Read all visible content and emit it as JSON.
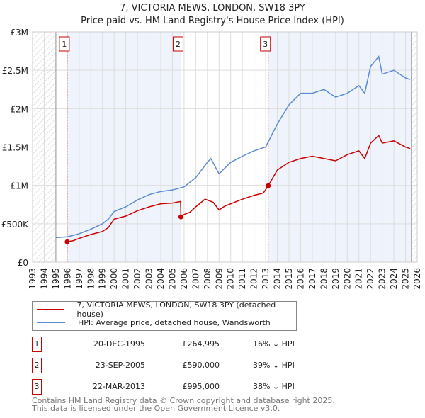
{
  "chart_data": {
    "type": "line",
    "title": "7, VICTORIA MEWS, LONDON, SW18 3PY",
    "subtitle": "Price paid vs. HM Land Registry's House Price Index (HPI)",
    "xlim": [
      1993,
      2026
    ],
    "ylim": [
      0,
      3000000
    ],
    "yticks": [
      {
        "v": 0,
        "label": "£0"
      },
      {
        "v": 500000,
        "label": "£500K"
      },
      {
        "v": 1000000,
        "label": "£1M"
      },
      {
        "v": 1500000,
        "label": "£1.5M"
      },
      {
        "v": 2000000,
        "label": "£2M"
      },
      {
        "v": 2500000,
        "label": "£2.5M"
      },
      {
        "v": 3000000,
        "label": "£3M"
      }
    ],
    "xticks": [
      "1993",
      "1994",
      "1995",
      "1996",
      "1997",
      "1998",
      "1999",
      "2000",
      "2001",
      "2002",
      "2003",
      "2004",
      "2005",
      "2006",
      "2007",
      "2008",
      "2009",
      "2010",
      "2011",
      "2012",
      "2013",
      "2014",
      "2015",
      "2016",
      "2017",
      "2018",
      "2019",
      "2020",
      "2021",
      "2022",
      "2023",
      "2024",
      "2025",
      "2026"
    ],
    "series": [
      {
        "name": "7, VICTORIA MEWS, LONDON, SW18 3PY (detached house)",
        "color": "#cc0000",
        "x": [
          1995.97,
          1996.5,
          1997,
          1998,
          1999,
          1999.5,
          2000,
          2001,
          2002,
          2003,
          2004,
          2005,
          2005.7,
          2005.73,
          2006,
          2006.5,
          2007,
          2007.8,
          2008.5,
          2009,
          2009.5,
          2010,
          2011,
          2012,
          2012.8,
          2013.22,
          2014,
          2015,
          2016,
          2017,
          2018,
          2019,
          2020,
          2021,
          2021.5,
          2022,
          2022.7,
          2023,
          2024,
          2025,
          2025.4
        ],
        "y": [
          264995,
          280000,
          310000,
          360000,
          400000,
          450000,
          560000,
          600000,
          670000,
          720000,
          760000,
          770000,
          790000,
          590000,
          620000,
          650000,
          720000,
          820000,
          780000,
          680000,
          730000,
          760000,
          820000,
          870000,
          900000,
          995000,
          1200000,
          1300000,
          1350000,
          1380000,
          1350000,
          1320000,
          1400000,
          1450000,
          1350000,
          1550000,
          1650000,
          1550000,
          1580000,
          1500000,
          1480000
        ]
      },
      {
        "name": "HPI: Average price, detached house, Wandsworth",
        "color": "#5b8bd0",
        "x": [
          1995,
          1996,
          1997,
          1998,
          1999,
          1999.5,
          2000,
          2001,
          2002,
          2003,
          2004,
          2005,
          2006,
          2007,
          2008,
          2008.3,
          2009,
          2010,
          2011,
          2012,
          2013,
          2014,
          2015,
          2016,
          2017,
          2018,
          2019,
          2020,
          2021,
          2021.5,
          2022,
          2022.7,
          2023,
          2024,
          2025,
          2025.4
        ],
        "y": [
          320000,
          330000,
          370000,
          430000,
          500000,
          560000,
          660000,
          720000,
          810000,
          880000,
          920000,
          940000,
          980000,
          1100000,
          1300000,
          1350000,
          1150000,
          1300000,
          1380000,
          1450000,
          1500000,
          1800000,
          2050000,
          2200000,
          2200000,
          2250000,
          2150000,
          2200000,
          2300000,
          2200000,
          2550000,
          2680000,
          2450000,
          2500000,
          2400000,
          2380000
        ]
      }
    ],
    "sales": [
      {
        "n": "1",
        "x": 1995.97,
        "y": 264995,
        "date": "20-DEC-1995",
        "price": "£264,995",
        "hpi": "16% ↓ HPI"
      },
      {
        "n": "2",
        "x": 2005.73,
        "y": 590000,
        "date": "23-SEP-2005",
        "price": "£590,000",
        "hpi": "39% ↓ HPI"
      },
      {
        "n": "3",
        "x": 2013.22,
        "y": 995000,
        "date": "22-MAR-2013",
        "price": "£995,000",
        "hpi": "38% ↓ HPI"
      }
    ],
    "hatched_ranges": [
      [
        1993,
        1995
      ],
      [
        2025.5,
        2026
      ]
    ],
    "shaded_ranges": [
      [
        1995.97,
        2005.73
      ],
      [
        2013.22,
        2025.5
      ]
    ],
    "legend_placement": "bottom-left"
  },
  "footer": {
    "line1": "Contains HM Land Registry data © Crown copyright and database right 2025.",
    "line2": "This data is licensed under the Open Government Licence v3.0."
  }
}
